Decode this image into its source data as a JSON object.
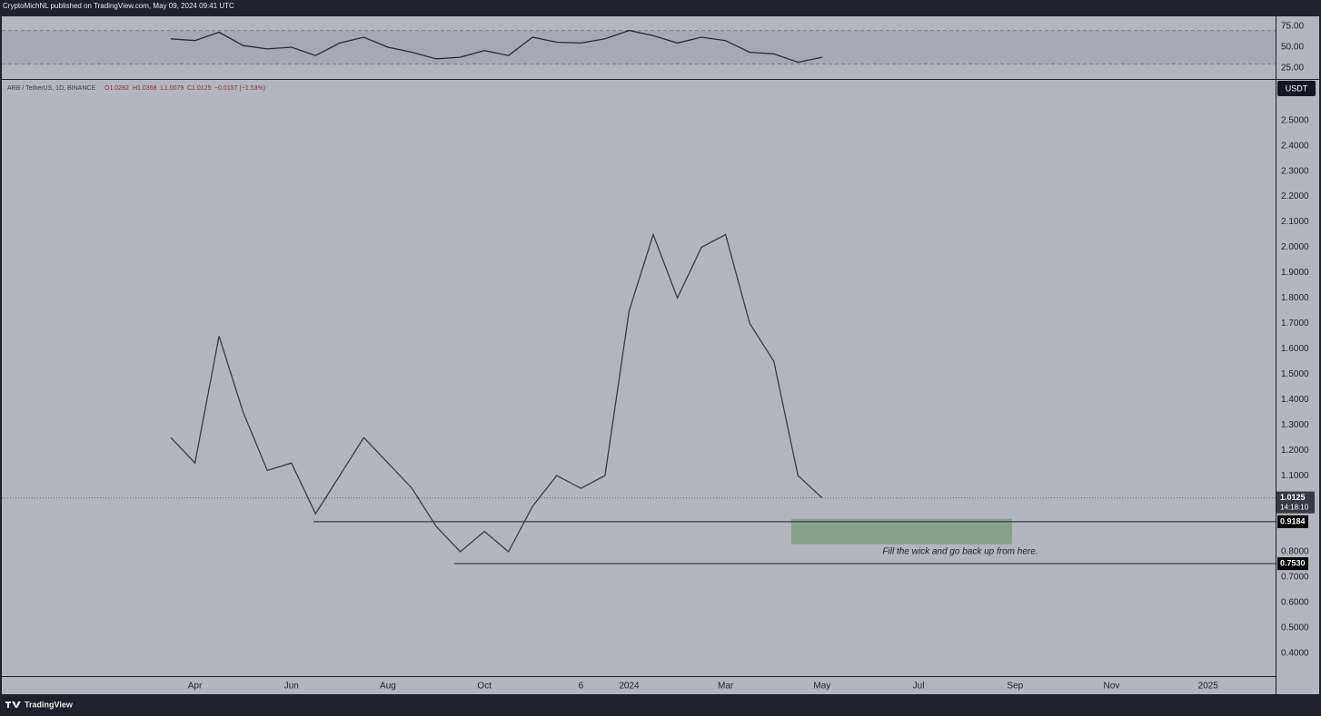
{
  "header": {
    "publisher": "CryptoMichNL published on TradingView.com, May 09, 2024 09:41 UTC",
    "symbol": "ARB / TetherUS, 1D, BINANCE",
    "open": "O1.0282",
    "high": "H1.0368",
    "low": "L1.0079",
    "close": "C1.0125",
    "change": "−0.0157 (−1.53%)"
  },
  "footer": {
    "brand": "TradingView"
  },
  "chart_data": [
    {
      "type": "line",
      "color": "#3b3d44",
      "currency": "USDT",
      "categories": [
        null,
        "Apr",
        null,
        null,
        null,
        "Jun",
        null,
        null,
        null,
        "Aug",
        null,
        null,
        null,
        "Oct",
        null,
        null,
        null,
        "6",
        null,
        "2024",
        null,
        null,
        null,
        "Mar",
        null,
        null,
        null,
        "May",
        null,
        null,
        null,
        "Jul",
        null,
        null,
        null,
        "Sep",
        null,
        null,
        null,
        "Nov",
        null,
        null,
        null,
        "2025",
        null,
        null
      ],
      "values": [
        1.25,
        1.15,
        1.65,
        1.35,
        1.12,
        1.15,
        0.95,
        1.1,
        1.25,
        1.15,
        1.05,
        0.9,
        0.8,
        0.88,
        0.8,
        0.98,
        1.1,
        1.05,
        1.1,
        1.75,
        2.05,
        1.8,
        2.0,
        2.05,
        1.7,
        1.55,
        1.1,
        1.0125,
        null,
        null,
        null,
        null,
        null,
        null,
        null,
        null,
        null,
        null,
        null,
        null,
        null,
        null,
        null,
        null,
        null,
        null
      ],
      "ylim": [
        0.31,
        2.66
      ],
      "yticks": [
        {
          "value": 0.4,
          "label": "0.4000"
        },
        {
          "value": 0.5,
          "label": "0.5000"
        },
        {
          "value": 0.6,
          "label": "0.6000"
        },
        {
          "value": 0.7,
          "label": "0.7000"
        },
        {
          "value": 0.8,
          "label": "0.8000"
        },
        {
          "value": 1.1,
          "label": "1.1000"
        },
        {
          "value": 1.2,
          "label": "1.2000"
        },
        {
          "value": 1.3,
          "label": "1.3000"
        },
        {
          "value": 1.4,
          "label": "1.4000"
        },
        {
          "value": 1.5,
          "label": "1.5000"
        },
        {
          "value": 1.6,
          "label": "1.6000"
        },
        {
          "value": 1.7,
          "label": "1.7000"
        },
        {
          "value": 1.8,
          "label": "1.8000"
        },
        {
          "value": 1.9,
          "label": "1.9000"
        },
        {
          "value": 2.0,
          "label": "2.0000"
        },
        {
          "value": 2.1,
          "label": "2.1000"
        },
        {
          "value": 2.2,
          "label": "2.2000"
        },
        {
          "value": 2.3,
          "label": "2.3000"
        },
        {
          "value": 2.4,
          "label": "2.4000"
        },
        {
          "value": 2.5,
          "label": "2.5000"
        }
      ],
      "grid": false,
      "current_price": {
        "value": 1.0125,
        "label": "1.0125",
        "countdown": "14:18:10"
      },
      "levels": [
        {
          "value": 0.9184,
          "label": "0.9184"
        },
        {
          "value": 0.753,
          "label": "0.7530"
        }
      ],
      "zone": {
        "low": 0.83,
        "high": 0.93,
        "color": "#7f9c80",
        "annotation": "Fill the wick and go back up from here."
      }
    },
    {
      "type": "line",
      "color": "#2b2d33",
      "values": [
        60,
        58,
        68,
        52,
        48,
        50,
        40,
        55,
        62,
        50,
        44,
        36,
        38,
        46,
        40,
        62,
        56,
        55,
        60,
        70,
        64,
        55,
        62,
        58,
        44,
        42,
        32,
        38,
        null,
        null,
        null,
        null,
        null,
        null,
        null,
        null,
        null,
        null,
        null,
        null,
        null,
        null,
        null,
        null,
        null,
        null
      ],
      "ylim": [
        12,
        87
      ],
      "band": [
        30,
        70
      ],
      "yticks": [
        {
          "value": 25,
          "label": "25.00"
        },
        {
          "value": 50,
          "label": "50.00"
        },
        {
          "value": 75,
          "label": "75.00"
        }
      ]
    }
  ]
}
